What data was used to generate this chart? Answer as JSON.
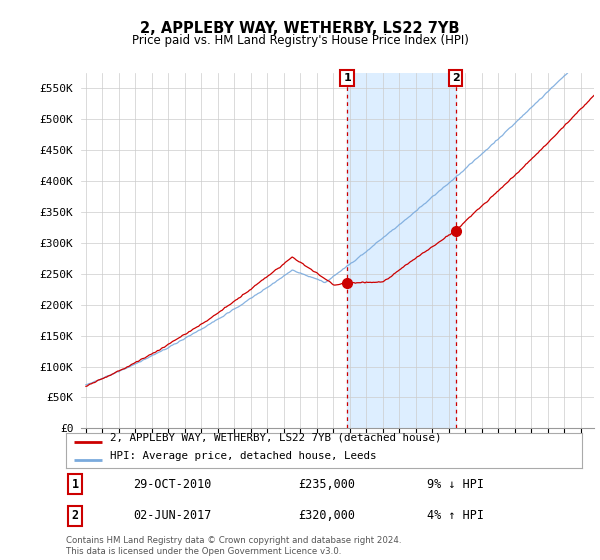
{
  "title": "2, APPLEBY WAY, WETHERBY, LS22 7YB",
  "subtitle": "Price paid vs. HM Land Registry's House Price Index (HPI)",
  "ylim": [
    0,
    575000
  ],
  "yticks": [
    0,
    50000,
    100000,
    150000,
    200000,
    250000,
    300000,
    350000,
    400000,
    450000,
    500000,
    550000
  ],
  "ytick_labels": [
    "£0",
    "£50K",
    "£100K",
    "£150K",
    "£200K",
    "£250K",
    "£300K",
    "£350K",
    "£400K",
    "£450K",
    "£500K",
    "£550K"
  ],
  "sale1_year": 2010.83,
  "sale1_price": 235000,
  "sale1_label": "1",
  "sale1_date": "29-OCT-2010",
  "sale1_amount": "£235,000",
  "sale1_pct": "9% ↓ HPI",
  "sale2_year": 2017.42,
  "sale2_price": 320000,
  "sale2_label": "2",
  "sale2_date": "02-JUN-2017",
  "sale2_amount": "£320,000",
  "sale2_pct": "4% ↑ HPI",
  "legend_property": "2, APPLEBY WAY, WETHERBY, LS22 7YB (detached house)",
  "legend_hpi": "HPI: Average price, detached house, Leeds",
  "footnote": "Contains HM Land Registry data © Crown copyright and database right 2024.\nThis data is licensed under the Open Government Licence v3.0.",
  "property_color": "#cc0000",
  "hpi_color": "#7aaadd",
  "shade_color": "#ddeeff",
  "background_color": "#ffffff",
  "grid_color": "#cccccc"
}
